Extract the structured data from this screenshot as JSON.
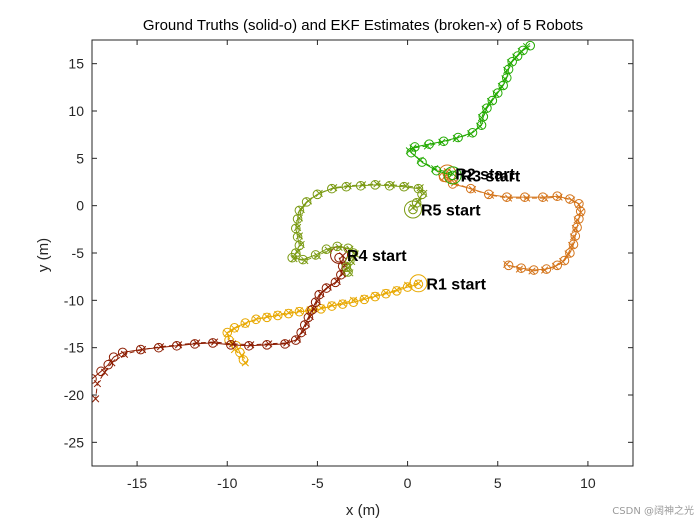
{
  "chart_data": {
    "type": "line",
    "title": "Ground Truths (solid-o) and EKF Estimates (broken-x) of 5 Robots",
    "xlabel": "x (m)",
    "ylabel": "y (m)",
    "xlim": [
      -17.5,
      12.5
    ],
    "ylim": [
      -27.5,
      17.5
    ],
    "x_ticks": [
      -15,
      -10,
      -5,
      0,
      5,
      10
    ],
    "y_ticks": [
      15,
      10,
      5,
      0,
      -5,
      -10,
      -15,
      -20,
      -25
    ],
    "grid": false,
    "box": true,
    "series": [
      {
        "color": "#e8a800",
        "truth": [
          [
            0.6,
            -8.3
          ],
          [
            0,
            -8.6
          ],
          [
            -0.6,
            -9
          ],
          [
            -1.2,
            -9.3
          ],
          [
            -1.8,
            -9.6
          ],
          [
            -2.4,
            -9.9
          ],
          [
            -3,
            -10.2
          ],
          [
            -3.6,
            -10.4
          ],
          [
            -4.2,
            -10.6
          ],
          [
            -4.8,
            -10.9
          ],
          [
            -5.4,
            -11.1
          ],
          [
            -6,
            -11.2
          ],
          [
            -6.6,
            -11.4
          ],
          [
            -7.2,
            -11.6
          ],
          [
            -7.8,
            -11.8
          ],
          [
            -8.4,
            -12
          ],
          [
            -9,
            -12.4
          ],
          [
            -9.6,
            -12.9
          ],
          [
            -10,
            -13.4
          ],
          [
            -9.9,
            -14.2
          ],
          [
            -9.5,
            -14.8
          ],
          [
            -9.3,
            -15.5
          ],
          [
            -9.1,
            -16.3
          ]
        ],
        "estimate": [
          [
            0.6,
            -8.2
          ],
          [
            0,
            -8.4
          ],
          [
            -0.6,
            -8.9
          ],
          [
            -1.2,
            -9.2
          ],
          [
            -1.8,
            -9.5
          ],
          [
            -2.4,
            -9.8
          ],
          [
            -3,
            -10
          ],
          [
            -3.6,
            -10.3
          ],
          [
            -4.2,
            -10.5
          ],
          [
            -4.8,
            -10.8
          ],
          [
            -5.4,
            -11
          ],
          [
            -6,
            -11.1
          ],
          [
            -6.6,
            -11.3
          ],
          [
            -7.2,
            -11.5
          ],
          [
            -7.8,
            -11.7
          ],
          [
            -8.4,
            -12
          ],
          [
            -9,
            -12.5
          ],
          [
            -9.6,
            -13
          ],
          [
            -10,
            -13.5
          ],
          [
            -9.8,
            -14.4
          ],
          [
            -9.6,
            -15.2
          ],
          [
            -9.2,
            -15.8
          ],
          [
            -9,
            -16.6
          ]
        ],
        "start_label": "R1 start",
        "start": [
          0.6,
          -8.2
        ]
      },
      {
        "color": "#d4741a",
        "truth": [
          [
            2.2,
            3.4
          ],
          [
            2,
            3
          ],
          [
            2.5,
            2.3
          ],
          [
            3.5,
            1.8
          ],
          [
            4.5,
            1.2
          ],
          [
            5.5,
            0.9
          ],
          [
            6.5,
            0.9
          ],
          [
            7.5,
            0.9
          ],
          [
            8.3,
            1
          ],
          [
            9,
            0.7
          ],
          [
            9.5,
            0.2
          ],
          [
            9.6,
            -0.6
          ],
          [
            9.5,
            -1.4
          ],
          [
            9.4,
            -2.3
          ],
          [
            9.3,
            -3.2
          ],
          [
            9.2,
            -4.1
          ],
          [
            9,
            -5
          ],
          [
            8.7,
            -5.8
          ],
          [
            8.3,
            -6.3
          ],
          [
            7.7,
            -6.7
          ],
          [
            7,
            -6.8
          ],
          [
            6.3,
            -6.6
          ],
          [
            5.6,
            -6.3
          ]
        ],
        "estimate": [
          [
            2.2,
            3.6
          ],
          [
            2.1,
            3.1
          ],
          [
            2.6,
            2.4
          ],
          [
            3.6,
            1.7
          ],
          [
            4.6,
            1.1
          ],
          [
            5.6,
            0.8
          ],
          [
            6.6,
            0.8
          ],
          [
            7.6,
            0.8
          ],
          [
            8.4,
            0.9
          ],
          [
            9.1,
            0.6
          ],
          [
            9.5,
            0.1
          ],
          [
            9.6,
            -0.7
          ],
          [
            9.4,
            -1.5
          ],
          [
            9.3,
            -2.4
          ],
          [
            9.2,
            -3.3
          ],
          [
            9.1,
            -4.2
          ],
          [
            8.9,
            -5.1
          ],
          [
            8.6,
            -5.9
          ],
          [
            8.2,
            -6.4
          ],
          [
            7.6,
            -6.8
          ],
          [
            6.9,
            -6.9
          ],
          [
            6.2,
            -6.7
          ],
          [
            5.5,
            -6.2
          ]
        ],
        "start_label": "R2 start",
        "start": [
          2.2,
          3.4
        ]
      },
      {
        "color": "#22aa00",
        "truth": [
          [
            2.5,
            3.2
          ],
          [
            1.6,
            3.7
          ],
          [
            0.8,
            4.6
          ],
          [
            0.2,
            5.6
          ],
          [
            0.4,
            6.2
          ],
          [
            1.2,
            6.5
          ],
          [
            2,
            6.8
          ],
          [
            2.8,
            7.2
          ],
          [
            3.6,
            7.7
          ],
          [
            4.1,
            8.5
          ],
          [
            4.2,
            9.4
          ],
          [
            4.4,
            10.3
          ],
          [
            4.7,
            11.1
          ],
          [
            5,
            11.9
          ],
          [
            5.3,
            12.7
          ],
          [
            5.5,
            13.5
          ],
          [
            5.6,
            14.4
          ],
          [
            5.8,
            15.2
          ],
          [
            6.1,
            15.8
          ],
          [
            6.4,
            16.4
          ],
          [
            6.8,
            16.9
          ]
        ],
        "estimate": [
          [
            2.5,
            3.4
          ],
          [
            1.5,
            3.9
          ],
          [
            0.7,
            4.8
          ],
          [
            0.1,
            5.8
          ],
          [
            0.3,
            6.1
          ],
          [
            1.1,
            6.3
          ],
          [
            1.9,
            6.7
          ],
          [
            2.7,
            7.1
          ],
          [
            3.5,
            7.6
          ],
          [
            4,
            8.4
          ],
          [
            4.1,
            9.3
          ],
          [
            4.3,
            10.2
          ],
          [
            4.6,
            11
          ],
          [
            4.9,
            11.8
          ],
          [
            5.2,
            12.6
          ],
          [
            5.4,
            13.4
          ],
          [
            5.5,
            14.3
          ],
          [
            5.7,
            15.1
          ],
          [
            6,
            15.7
          ],
          [
            6.3,
            16.3
          ],
          [
            6.6,
            16.8
          ]
        ],
        "start_label": "R3 start",
        "start": [
          2.5,
          3.2
        ]
      },
      {
        "color": "#8c1c00",
        "truth": [
          [
            -3.8,
            -5.5
          ],
          [
            -3.6,
            -6.4
          ],
          [
            -3.7,
            -7.3
          ],
          [
            -4,
            -8.1
          ],
          [
            -4.5,
            -8.7
          ],
          [
            -4.9,
            -9.4
          ],
          [
            -5.1,
            -10.2
          ],
          [
            -5.3,
            -11
          ],
          [
            -5.5,
            -11.8
          ],
          [
            -5.7,
            -12.6
          ],
          [
            -5.9,
            -13.4
          ],
          [
            -6.2,
            -14.2
          ],
          [
            -6.8,
            -14.6
          ],
          [
            -7.8,
            -14.7
          ],
          [
            -8.8,
            -14.8
          ],
          [
            -9.8,
            -14.7
          ],
          [
            -10.8,
            -14.5
          ],
          [
            -11.8,
            -14.6
          ],
          [
            -12.8,
            -14.8
          ],
          [
            -13.8,
            -15
          ],
          [
            -14.8,
            -15.2
          ],
          [
            -15.8,
            -15.5
          ],
          [
            -16.3,
            -16
          ],
          [
            -16.6,
            -16.8
          ],
          [
            -17,
            -17.5
          ],
          [
            -17.5,
            -18.3
          ]
        ],
        "estimate": [
          [
            -3.6,
            -5.3
          ],
          [
            -3.5,
            -6.3
          ],
          [
            -3.6,
            -7.2
          ],
          [
            -3.9,
            -8
          ],
          [
            -4.4,
            -8.6
          ],
          [
            -4.8,
            -9.3
          ],
          [
            -5,
            -10.1
          ],
          [
            -5.2,
            -10.9
          ],
          [
            -5.4,
            -11.7
          ],
          [
            -5.6,
            -12.5
          ],
          [
            -5.8,
            -13.3
          ],
          [
            -6.1,
            -14.1
          ],
          [
            -6.7,
            -14.5
          ],
          [
            -7.7,
            -14.6
          ],
          [
            -8.7,
            -14.7
          ],
          [
            -9.7,
            -14.6
          ],
          [
            -10.7,
            -14.4
          ],
          [
            -11.7,
            -14.5
          ],
          [
            -12.7,
            -14.7
          ],
          [
            -13.7,
            -14.9
          ],
          [
            -14.7,
            -15.2
          ],
          [
            -15.7,
            -15.7
          ],
          [
            -16.4,
            -16.6
          ],
          [
            -16.8,
            -17.6
          ],
          [
            -17.2,
            -18.8
          ],
          [
            -17.3,
            -20.4
          ]
        ],
        "start_label": "R4 start",
        "start": [
          -3.8,
          -5.2
        ]
      },
      {
        "color": "#7a9a12",
        "truth": [
          [
            0.3,
            -0.4
          ],
          [
            0.5,
            0.3
          ],
          [
            0.8,
            1.2
          ],
          [
            0.6,
            1.8
          ],
          [
            -0.2,
            2
          ],
          [
            -1,
            2.1
          ],
          [
            -1.8,
            2.2
          ],
          [
            -2.6,
            2.1
          ],
          [
            -3.4,
            2
          ],
          [
            -4.2,
            1.8
          ],
          [
            -5,
            1.2
          ],
          [
            -5.6,
            0.4
          ],
          [
            -6,
            -0.5
          ],
          [
            -6.1,
            -1.4
          ],
          [
            -6.2,
            -2.4
          ],
          [
            -6.1,
            -3.3
          ],
          [
            -6,
            -4.2
          ],
          [
            -6.2,
            -5
          ],
          [
            -6.4,
            -5.5
          ],
          [
            -5.8,
            -5.7
          ],
          [
            -5.1,
            -5.2
          ],
          [
            -4.5,
            -4.6
          ],
          [
            -3.9,
            -4.3
          ],
          [
            -3.3,
            -4.5
          ],
          [
            -3,
            -5
          ],
          [
            -3.2,
            -5.8
          ],
          [
            -3.4,
            -6.5
          ],
          [
            -3.3,
            -7
          ]
        ],
        "estimate": [
          [
            0.3,
            -0.2
          ],
          [
            0.6,
            0.4
          ],
          [
            0.9,
            1.3
          ],
          [
            0.7,
            1.9
          ],
          [
            -0.1,
            2.1
          ],
          [
            -0.9,
            2.2
          ],
          [
            -1.7,
            2.3
          ],
          [
            -2.5,
            2.2
          ],
          [
            -3.3,
            2.1
          ],
          [
            -4.1,
            1.9
          ],
          [
            -4.9,
            1.3
          ],
          [
            -5.5,
            0.5
          ],
          [
            -5.9,
            -0.4
          ],
          [
            -6,
            -1.3
          ],
          [
            -6.1,
            -2.3
          ],
          [
            -6,
            -3.2
          ],
          [
            -5.9,
            -4.1
          ],
          [
            -6.1,
            -4.9
          ],
          [
            -6.3,
            -5.6
          ],
          [
            -5.7,
            -5.8
          ],
          [
            -5,
            -5.3
          ],
          [
            -4.4,
            -4.7
          ],
          [
            -3.8,
            -4.4
          ],
          [
            -3.2,
            -4.6
          ],
          [
            -2.9,
            -5.1
          ],
          [
            -3.1,
            -5.9
          ],
          [
            -3.3,
            -6.6
          ],
          [
            -3.2,
            -7.1
          ]
        ],
        "start_label": "R5 start",
        "start": [
          0.3,
          -0.4
        ]
      }
    ]
  },
  "watermark": "CSDN @阔神之光"
}
